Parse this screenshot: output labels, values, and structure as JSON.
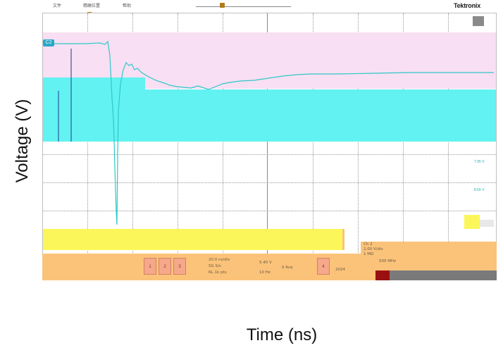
{
  "topbar": {
    "menu": [
      "文件",
      "精确位置",
      "帮助"
    ],
    "logo": "Tektronix"
  },
  "channel_badge": "C2",
  "voltage_ticks": [
    "7.95 V",
    "8.55 V"
  ],
  "bottom": {
    "buttons": [
      "1",
      "2",
      "3",
      "4"
    ],
    "readouts": [
      "20.0 ns/div",
      "5G S/s",
      "RL 1k pts",
      "5.40 V",
      "10 Hz",
      "0 Acq"
    ],
    "ch_panel": {
      "title": "Ch 2",
      "scale": "2.00 V/div",
      "impedance": "1 MΩ",
      "bandwidth": "500 MHz"
    },
    "date_label": "2024"
  },
  "axis": {
    "ylabel": "Voltage (V)",
    "xlabel": "Time (ns)"
  },
  "colors": {
    "trace": "#2ec8c8",
    "pink": "#f8dff3",
    "cyan": "#62f2f2",
    "yellow": "#fbf75a",
    "orange": "#fbc37a",
    "darkred": "#9a1010"
  }
}
